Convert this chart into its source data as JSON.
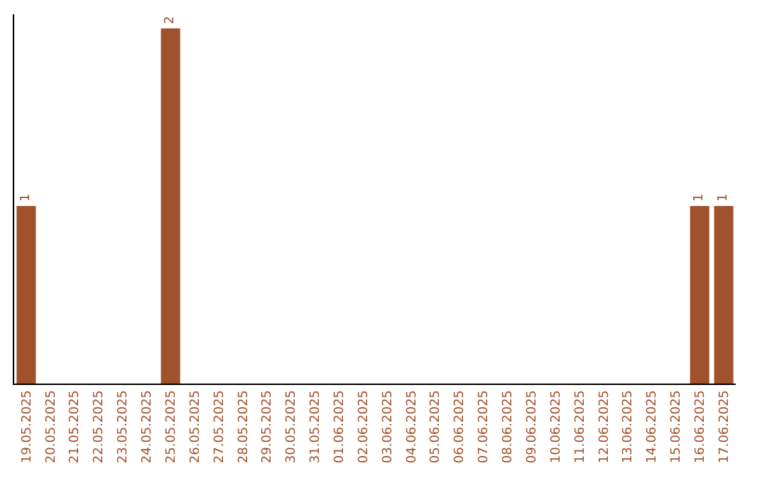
{
  "chart_data": {
    "type": "bar",
    "categories": [
      "19.05.2025",
      "20.05.2025",
      "21.05.2025",
      "22.05.2025",
      "23.05.2025",
      "24.05.2025",
      "25.05.2025",
      "26.05.2025",
      "27.05.2025",
      "28.05.2025",
      "29.05.2025",
      "30.05.2025",
      "31.05.2025",
      "01.06.2025",
      "02.06.2025",
      "03.06.2025",
      "04.06.2025",
      "05.06.2025",
      "06.06.2025",
      "07.06.2025",
      "08.06.2025",
      "09.06.2025",
      "10.06.2025",
      "11.06.2025",
      "12.06.2025",
      "13.06.2025",
      "14.06.2025",
      "15.06.2025",
      "16.06.2025",
      "17.06.2025"
    ],
    "values": [
      1,
      0,
      0,
      0,
      0,
      0,
      2,
      0,
      0,
      0,
      0,
      0,
      0,
      0,
      0,
      0,
      0,
      0,
      0,
      0,
      0,
      0,
      0,
      0,
      0,
      0,
      0,
      0,
      1,
      1
    ],
    "value_labels": [
      "1",
      null,
      null,
      null,
      null,
      null,
      "2",
      null,
      null,
      null,
      null,
      null,
      null,
      null,
      null,
      null,
      null,
      null,
      null,
      null,
      null,
      null,
      null,
      null,
      null,
      null,
      null,
      null,
      "1",
      "1"
    ],
    "color": "#a0522d",
    "ylim": [
      0,
      2.08
    ],
    "tick_labels": "x",
    "legend": false
  }
}
